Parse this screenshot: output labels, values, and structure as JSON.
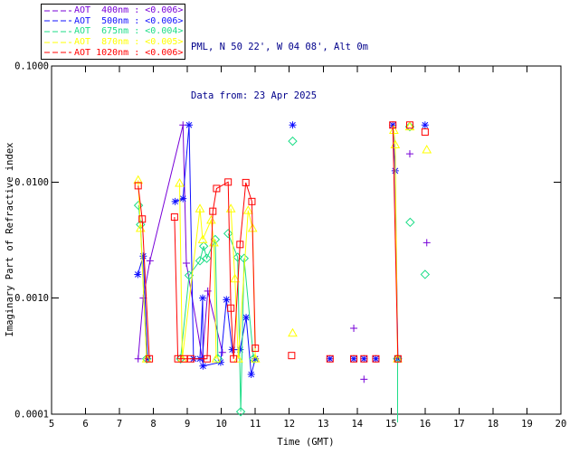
{
  "header": {
    "line1": "PML, N 50 22', W 04 08', Alt 0m",
    "line2": "Data from: 23 Apr 2025",
    "color": "#00008b"
  },
  "legend": {
    "items": [
      {
        "label": "AOT  400nm : <0.006>",
        "color": "#7700d8",
        "marker": "plus"
      },
      {
        "label": "AOT  500nm : <0.006>",
        "color": "#1010ff",
        "marker": "asterisk"
      },
      {
        "label": "AOT  675nm : <0.004>",
        "color": "#1ddd87",
        "marker": "diamond"
      },
      {
        "label": "AOT  870nm : <0.005>",
        "color": "#ffff00",
        "marker": "triangle"
      },
      {
        "label": "AOT 1020nm : <0.006>",
        "color": "#ff0000",
        "marker": "square"
      }
    ]
  },
  "chart_data": {
    "type": "line",
    "xlabel": "Time (GMT)",
    "ylabel": "Imaginary Part of Refractive index",
    "xlim": [
      5,
      20
    ],
    "xticks": [
      5,
      6,
      7,
      8,
      9,
      10,
      11,
      12,
      13,
      14,
      15,
      16,
      17,
      18,
      19,
      20
    ],
    "yscale": "log",
    "ylim": [
      0.0001,
      0.1
    ],
    "yticks": [
      0.1,
      0.01,
      0.001,
      0.0001
    ],
    "ytick_labels": [
      "0.1000",
      "0.0100",
      "0.0010",
      "0.0001"
    ],
    "grid": false,
    "legend_position": "top-left-outside",
    "series": [
      {
        "name": "AOT 400nm",
        "color": "#7700d8",
        "marker": "plus",
        "segments": [
          [
            [
              7.55,
              0.0003
            ],
            [
              7.7,
              0.001
            ],
            [
              7.9,
              0.0021
            ],
            [
              8.87,
              0.031
            ],
            [
              8.97,
              0.002
            ],
            [
              9.44,
              0.0003
            ],
            [
              9.6,
              0.00115
            ],
            [
              10.03,
              0.00034
            ]
          ]
        ],
        "isolated_points": [
          [
            13.9,
            0.00055
          ],
          [
            14.2,
            0.0002
          ],
          [
            15.55,
            0.0175
          ],
          [
            16.05,
            0.003
          ]
        ]
      },
      {
        "name": "AOT 500nm",
        "color": "#1010ff",
        "marker": "asterisk",
        "segments": [
          [
            [
              7.54,
              0.0016
            ],
            [
              7.7,
              0.0023
            ],
            [
              7.83,
              0.0003
            ]
          ],
          [
            [
              8.64,
              0.0068
            ],
            [
              8.87,
              0.0072
            ],
            [
              9.05,
              0.031
            ],
            [
              9.18,
              0.0003
            ],
            [
              9.37,
              0.0003
            ],
            [
              9.45,
              0.001
            ],
            [
              9.46,
              0.00026
            ],
            [
              9.98,
              0.00028
            ],
            [
              10.15,
              0.00097
            ],
            [
              10.32,
              0.00036
            ],
            [
              10.55,
              0.00036
            ],
            [
              10.73,
              0.00068
            ],
            [
              10.88,
              0.00022
            ],
            [
              11.0,
              0.0003
            ]
          ],
          [
            [
              15.05,
              0.031
            ],
            [
              15.12,
              0.0125
            ],
            [
              15.2,
              0.0003
            ]
          ]
        ],
        "isolated_points": [
          [
            12.1,
            0.031
          ],
          [
            13.2,
            0.0003
          ],
          [
            13.9,
            0.0003
          ],
          [
            14.2,
            0.0003
          ],
          [
            14.55,
            0.0003
          ],
          [
            16.0,
            0.031
          ]
        ]
      },
      {
        "name": "AOT 675nm",
        "color": "#1ddd87",
        "marker": "diamond",
        "segments": [
          [
            [
              7.56,
              0.0063
            ],
            [
              7.62,
              0.0043
            ],
            [
              7.8,
              0.0003
            ]
          ],
          [
            [
              8.8,
              0.0003
            ],
            [
              9.05,
              0.00157
            ],
            [
              9.37,
              0.0021
            ],
            [
              9.48,
              0.0028
            ],
            [
              9.57,
              0.0022
            ],
            [
              9.82,
              0.0032
            ],
            [
              9.9,
              0.0003
            ]
          ],
          [
            [
              10.2,
              0.0036
            ],
            [
              10.48,
              0.00225
            ],
            [
              10.57,
              0.000105
            ],
            [
              10.67,
              0.0022
            ],
            [
              10.95,
              0.0003
            ]
          ],
          [
            [
              15.19,
              0.0003
            ],
            [
              15.19,
              8.5e-05
            ]
          ]
        ],
        "isolated_points": [
          [
            12.1,
            0.0225
          ],
          [
            15.55,
            0.03
          ],
          [
            15.56,
            0.0045
          ],
          [
            16.0,
            0.0016
          ]
        ]
      },
      {
        "name": "AOT 870nm",
        "color": "#ffff00",
        "marker": "triangle",
        "segments": [
          [
            [
              7.55,
              0.0104
            ],
            [
              7.62,
              0.004
            ],
            [
              7.8,
              0.0003
            ]
          ],
          [
            [
              8.77,
              0.0098
            ],
            [
              8.85,
              0.0003
            ],
            [
              9.37,
              0.0059
            ],
            [
              9.45,
              0.0032
            ],
            [
              9.7,
              0.0047
            ],
            [
              9.78,
              0.003
            ],
            [
              9.85,
              0.0003
            ]
          ],
          [
            [
              10.28,
              0.0059
            ],
            [
              10.4,
              0.00147
            ],
            [
              10.5,
              0.0003
            ],
            [
              10.79,
              0.0057
            ],
            [
              10.92,
              0.004
            ],
            [
              11.0,
              0.0003
            ]
          ],
          [
            [
              15.08,
              0.028
            ],
            [
              15.12,
              0.021
            ],
            [
              15.19,
              0.0003
            ]
          ]
        ],
        "isolated_points": [
          [
            12.1,
            0.0005
          ],
          [
            15.55,
            0.03
          ],
          [
            16.05,
            0.019
          ]
        ]
      },
      {
        "name": "AOT 1020nm",
        "color": "#ff0000",
        "marker": "square",
        "segments": [
          [
            [
              7.55,
              0.0093
            ],
            [
              7.67,
              0.0048
            ],
            [
              7.88,
              0.0003
            ]
          ],
          [
            [
              8.62,
              0.005
            ],
            [
              8.72,
              0.0003
            ],
            [
              8.9,
              0.0003
            ],
            [
              9.1,
              0.0003
            ],
            [
              9.58,
              0.0003
            ],
            [
              9.75,
              0.0056
            ],
            [
              9.86,
              0.0088
            ],
            [
              10.2,
              0.01
            ],
            [
              10.28,
              0.00082
            ],
            [
              10.36,
              0.0003
            ],
            [
              10.55,
              0.0029
            ],
            [
              10.72,
              0.0099
            ],
            [
              10.9,
              0.0068
            ],
            [
              11.0,
              0.00037
            ]
          ],
          [
            [
              15.05,
              0.031
            ],
            [
              15.2,
              0.0003
            ]
          ]
        ],
        "isolated_points": [
          [
            12.07,
            0.00032
          ],
          [
            13.2,
            0.0003
          ],
          [
            13.9,
            0.0003
          ],
          [
            14.2,
            0.0003
          ],
          [
            14.55,
            0.0003
          ],
          [
            15.55,
            0.031
          ],
          [
            16.0,
            0.027
          ]
        ]
      }
    ]
  }
}
